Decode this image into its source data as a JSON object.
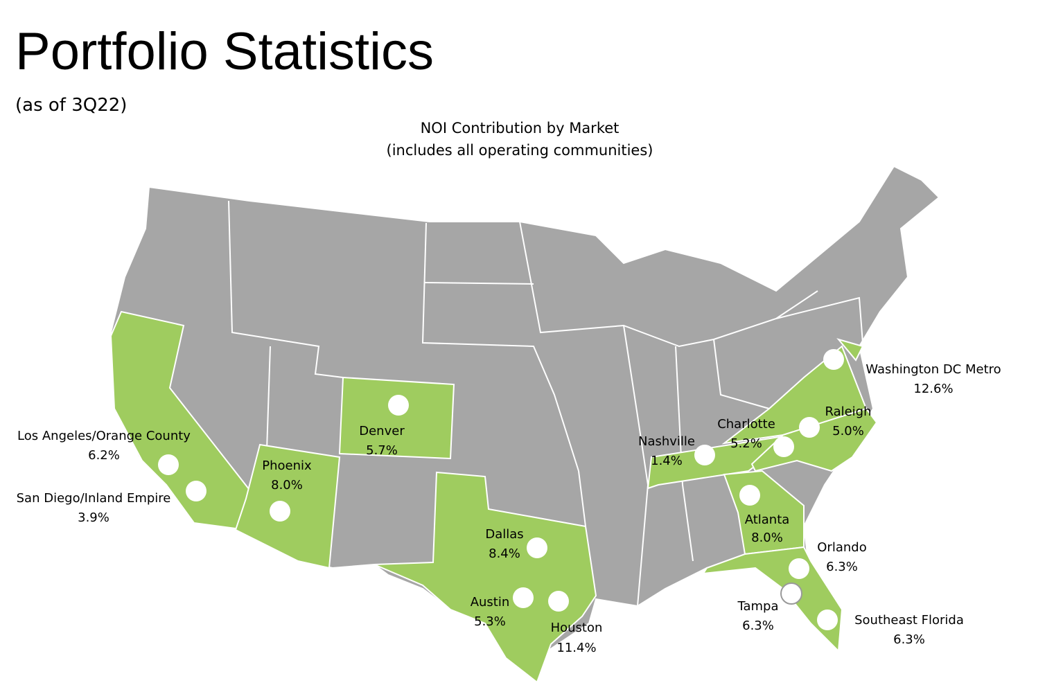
{
  "header": {
    "title": "Portfolio Statistics",
    "subtitle": "(as of 3Q22)"
  },
  "map": {
    "title": "NOI Contribution by Market",
    "subtitle": "(includes all operating communities)",
    "markets": [
      {
        "name": "Los Angeles/Orange County",
        "share": "6.2%"
      },
      {
        "name": "San Diego/Inland Empire",
        "share": "3.9%"
      },
      {
        "name": "Phoenix",
        "share": "8.0%"
      },
      {
        "name": "Denver",
        "share": "5.7%"
      },
      {
        "name": "Dallas",
        "share": "8.4%"
      },
      {
        "name": "Austin",
        "share": "5.3%"
      },
      {
        "name": "Houston",
        "share": "11.4%"
      },
      {
        "name": "Nashville",
        "share": "1.4%"
      },
      {
        "name": "Charlotte",
        "share": "5.2%"
      },
      {
        "name": "Raleigh",
        "share": "5.0%"
      },
      {
        "name": "Washington DC Metro",
        "share": "12.6%"
      },
      {
        "name": "Atlanta",
        "share": "8.0%"
      },
      {
        "name": "Orlando",
        "share": "6.3%"
      },
      {
        "name": "Tampa",
        "share": "6.3%"
      },
      {
        "name": "Southeast Florida",
        "share": "6.3%"
      }
    ]
  }
}
